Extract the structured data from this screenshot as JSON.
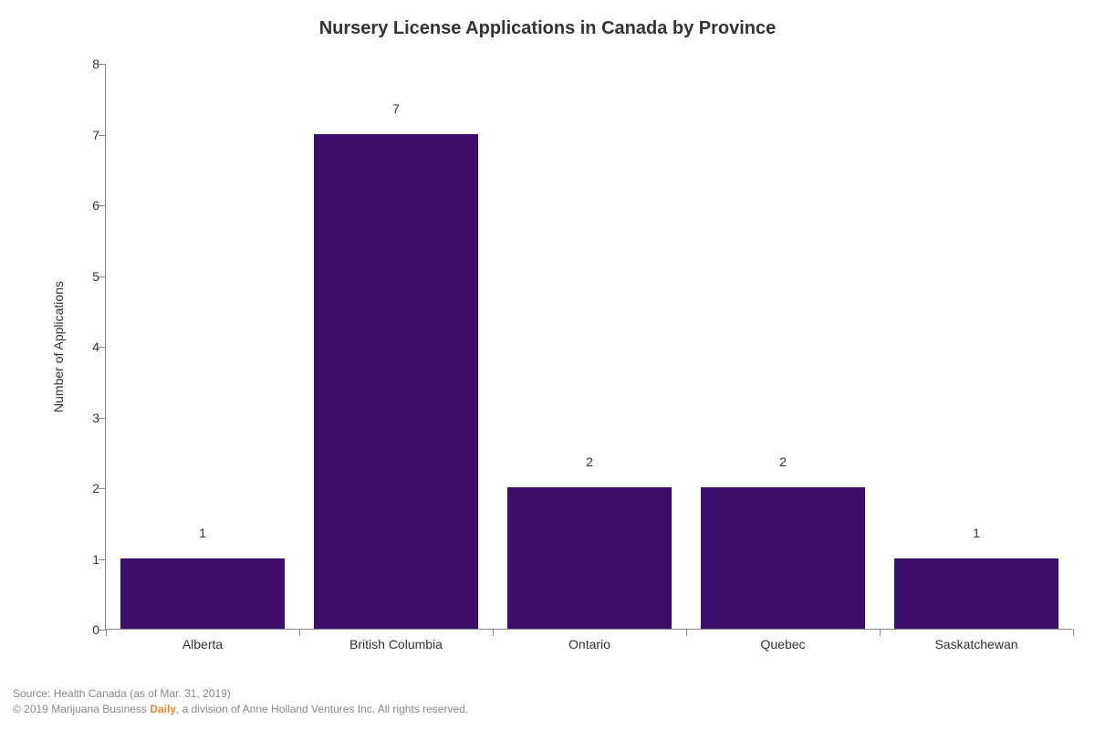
{
  "chart": {
    "type": "bar",
    "title": "Nursery License Applications in Canada by Province",
    "title_fontsize": 20,
    "ylabel": "Number of Applications",
    "label_fontsize": 14,
    "categories": [
      "Alberta",
      "British Columbia",
      "Ontario",
      "Quebec",
      "Saskatchewan"
    ],
    "values": [
      1,
      7,
      2,
      2,
      1
    ],
    "bar_color": "#3d0e6b",
    "ylim": [
      0,
      8
    ],
    "ytick_step": 1,
    "bar_width": 0.85,
    "background_color": "#ffffff",
    "axis_color": "#888888",
    "text_color": "#333333",
    "tick_fontsize": 14,
    "value_label_fontsize": 14
  },
  "footer": {
    "line1": "Source: Health Canada (as of Mar. 31, 2019)",
    "line2_prefix": "© 2019 Marijuana Business ",
    "line2_em": "Daily",
    "line2_suffix": ", a division of Anne Holland Ventures Inc. All rights reserved."
  }
}
